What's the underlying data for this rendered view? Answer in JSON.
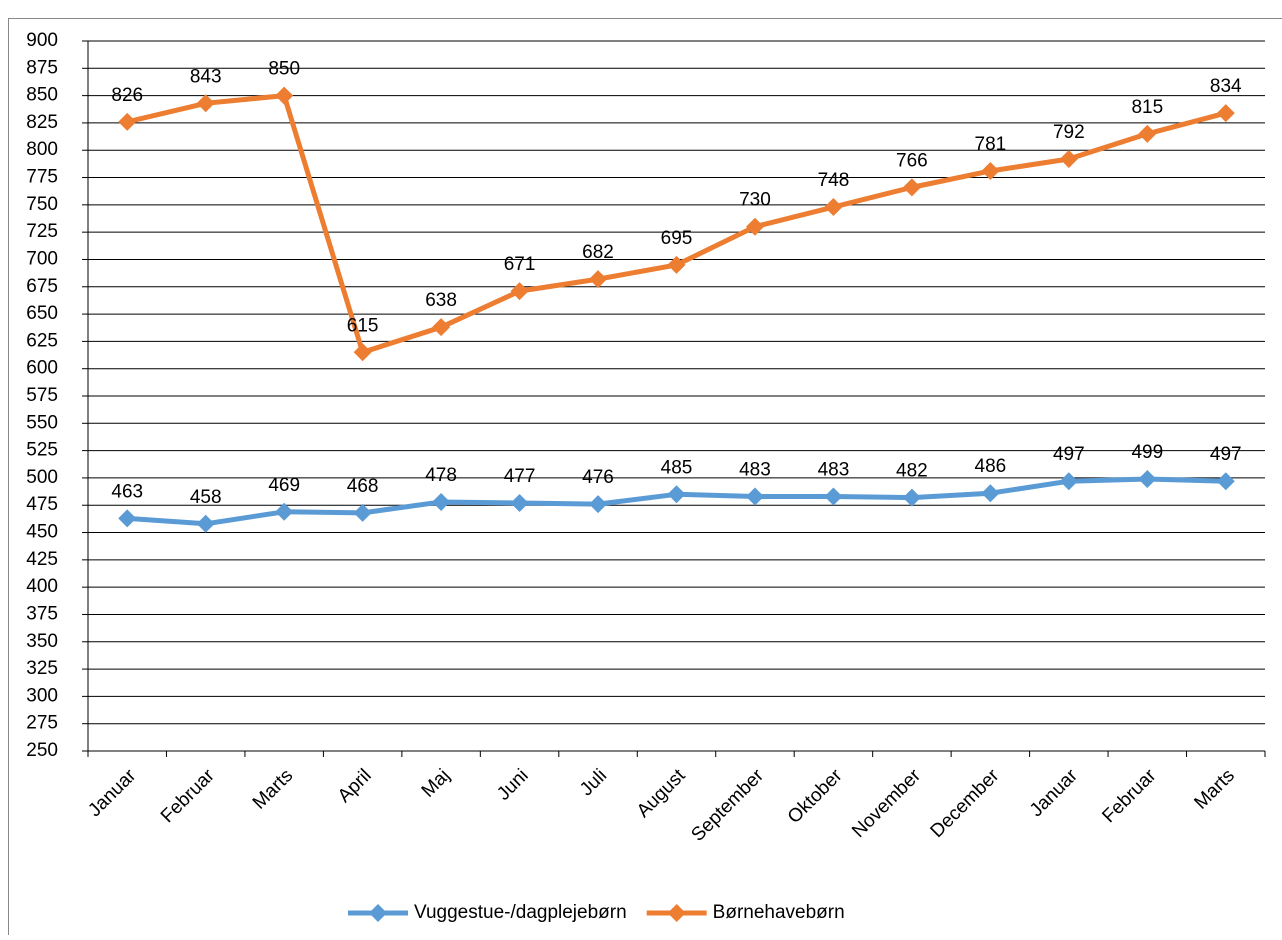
{
  "chart_data": {
    "type": "line",
    "categories": [
      "Januar",
      "Februar",
      "Marts",
      "April",
      "Maj",
      "Juni",
      "Juli",
      "August",
      "September",
      "Oktober",
      "November",
      "December",
      "Januar",
      "Februar",
      "Marts"
    ],
    "series": [
      {
        "name": "Vuggestue-/dagplejebørn",
        "color": "#5b9bd5",
        "values": [
          463,
          458,
          469,
          468,
          478,
          477,
          476,
          485,
          483,
          483,
          482,
          486,
          497,
          499,
          497
        ]
      },
      {
        "name": "Børnehavebørn",
        "color": "#ed7d31",
        "values": [
          826,
          843,
          850,
          615,
          638,
          671,
          682,
          695,
          730,
          748,
          766,
          781,
          792,
          815,
          834
        ]
      }
    ],
    "ylim": [
      250,
      900
    ],
    "yticks": [
      250,
      275,
      300,
      325,
      350,
      375,
      400,
      425,
      450,
      475,
      500,
      525,
      550,
      575,
      600,
      625,
      650,
      675,
      700,
      725,
      750,
      775,
      800,
      825,
      850,
      875,
      900
    ],
    "grid": true,
    "legend": "bottom"
  }
}
